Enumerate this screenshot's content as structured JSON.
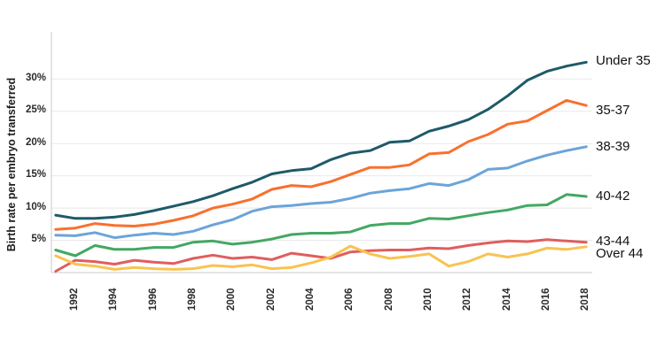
{
  "chart_data": {
    "type": "line",
    "title": "",
    "ylabel": "Birth rate per embryo transferred",
    "xlabel": "",
    "grid": "horizontal",
    "legend_position": "line-end-labels-right",
    "background_color": "#ffffff",
    "grid_color": "#e8e8e8",
    "axis_color": "#c9c9c9",
    "text_color": "#1c1c1c",
    "ylim": [
      0,
      37
    ],
    "xlim": [
      1991,
      2018
    ],
    "x": [
      1991,
      1992,
      1993,
      1994,
      1995,
      1996,
      1997,
      1998,
      1999,
      2000,
      2001,
      2002,
      2003,
      2004,
      2005,
      2006,
      2007,
      2008,
      2009,
      2010,
      2011,
      2012,
      2013,
      2014,
      2015,
      2016,
      2017,
      2018
    ],
    "x_tick_labels": [
      "1992",
      "1994",
      "1996",
      "1998",
      "2000",
      "2002",
      "2004",
      "2006",
      "2008",
      "2010",
      "2012",
      "2014",
      "2016",
      "2018"
    ],
    "x_tick_years": [
      1992,
      1994,
      1996,
      1998,
      2000,
      2002,
      2004,
      2006,
      2008,
      2010,
      2012,
      2014,
      2016,
      2018
    ],
    "y_ticks": [
      {
        "value": 5,
        "label": "5%"
      },
      {
        "value": 10,
        "label": "10%"
      },
      {
        "value": 15,
        "label": "15%"
      },
      {
        "value": 20,
        "label": "20%"
      },
      {
        "value": 25,
        "label": "25%"
      },
      {
        "value": 30,
        "label": "30%"
      }
    ],
    "series": [
      {
        "name": "Under 35",
        "color": "#1e5a68",
        "label_dy": -1.5,
        "values": [
          8.9,
          8.4,
          8.4,
          8.6,
          9.0,
          9.6,
          10.3,
          11.0,
          11.9,
          13.0,
          14.0,
          15.3,
          15.8,
          16.1,
          17.5,
          18.5,
          18.9,
          20.2,
          20.4,
          21.9,
          22.7,
          23.7,
          25.3,
          27.4,
          29.8,
          31.2,
          32.0,
          32.6
        ]
      },
      {
        "name": "35-37",
        "color": "#f8702e",
        "label_dy": 5.5,
        "values": [
          6.7,
          6.9,
          7.6,
          7.3,
          7.2,
          7.5,
          8.1,
          8.8,
          10.0,
          10.6,
          11.4,
          12.9,
          13.5,
          13.3,
          14.1,
          15.2,
          16.3,
          16.3,
          16.7,
          18.4,
          18.6,
          20.3,
          21.4,
          23.0,
          23.5,
          25.1,
          26.7,
          25.9
        ]
      },
      {
        "name": "38-39",
        "color": "#6ba4d9",
        "label_dy": 0,
        "values": [
          5.8,
          5.7,
          6.2,
          5.4,
          5.8,
          6.1,
          5.9,
          6.4,
          7.4,
          8.2,
          9.5,
          10.2,
          10.4,
          10.7,
          10.9,
          11.5,
          12.3,
          12.7,
          13.0,
          13.8,
          13.5,
          14.4,
          16.0,
          16.2,
          17.3,
          18.2,
          18.9,
          19.5
        ]
      },
      {
        "name": "40-42",
        "color": "#42a862",
        "label_dy": 0,
        "values": [
          3.5,
          2.6,
          4.2,
          3.6,
          3.6,
          3.9,
          3.9,
          4.7,
          4.9,
          4.4,
          4.7,
          5.2,
          5.9,
          6.1,
          6.1,
          6.3,
          7.3,
          7.6,
          7.6,
          8.4,
          8.3,
          8.8,
          9.3,
          9.7,
          10.4,
          10.5,
          12.1,
          11.8
        ]
      },
      {
        "name": "43-44",
        "color": "#e05e5e",
        "label_dy": -1,
        "values": [
          0.2,
          1.9,
          1.7,
          1.3,
          1.9,
          1.6,
          1.4,
          2.2,
          2.7,
          2.2,
          2.4,
          2.0,
          3.0,
          2.6,
          2.2,
          3.2,
          3.4,
          3.5,
          3.5,
          3.8,
          3.7,
          4.2,
          4.6,
          4.9,
          4.8,
          5.1,
          4.9,
          4.7
        ]
      },
      {
        "name": "Over 44",
        "color": "#f9c250",
        "label_dy": 8,
        "values": [
          2.6,
          1.3,
          1.0,
          0.5,
          0.8,
          0.6,
          0.5,
          0.6,
          1.1,
          0.9,
          1.2,
          0.6,
          0.8,
          1.5,
          2.4,
          4.1,
          2.9,
          2.2,
          2.5,
          2.9,
          1.0,
          1.7,
          2.9,
          2.4,
          2.9,
          3.8,
          3.6,
          4.0
        ]
      }
    ]
  }
}
